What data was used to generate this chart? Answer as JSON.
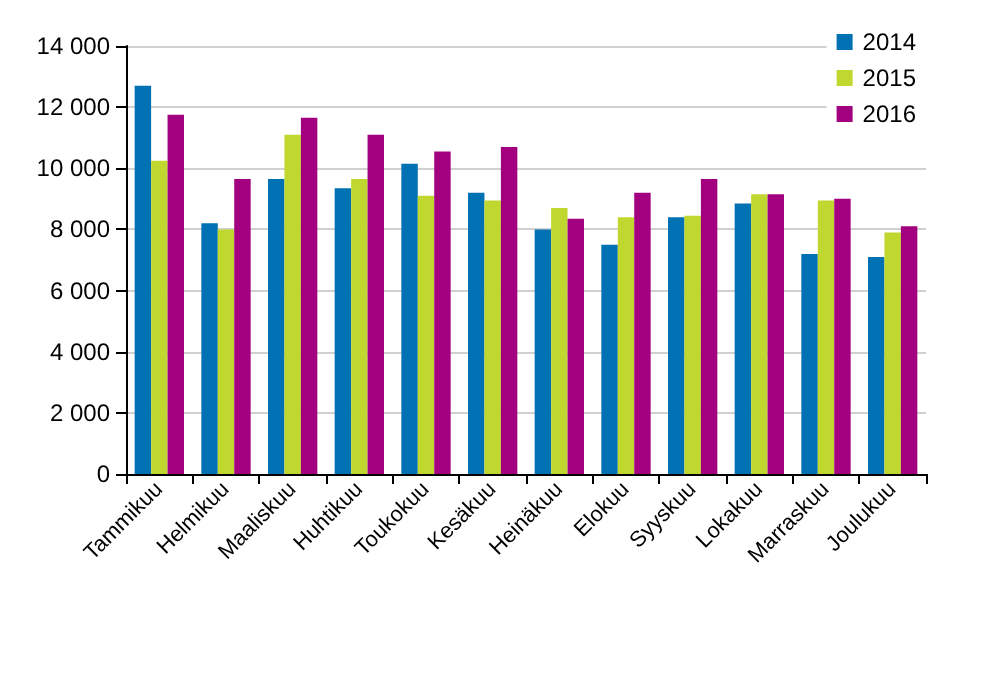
{
  "chart_data": {
    "type": "bar",
    "categories": [
      "Tammikuu",
      "Helmikuu",
      "Maaliskuu",
      "Huhtikuu",
      "Toukokuu",
      "Kesäkuu",
      "Heinäkuu",
      "Elokuu",
      "Syyskuu",
      "Lokakuu",
      "Marraskuu",
      "Joulukuu"
    ],
    "series": [
      {
        "name": "2014",
        "color": "#0071b2",
        "values": [
          12700,
          8200,
          9650,
          9350,
          10150,
          9200,
          8000,
          7500,
          8400,
          8850,
          7200,
          7100
        ]
      },
      {
        "name": "2015",
        "color": "#c0d730",
        "values": [
          10250,
          8000,
          11100,
          9650,
          9100,
          8950,
          8700,
          8400,
          8450,
          9150,
          8950,
          7900
        ]
      },
      {
        "name": "2016",
        "color": "#a3007f",
        "values": [
          11750,
          9650,
          11650,
          11100,
          10550,
          10700,
          8350,
          9200,
          9650,
          9150,
          9000,
          8100
        ]
      }
    ],
    "ylim": [
      0,
      14000
    ],
    "yticks": [
      {
        "value": 0,
        "label": "0"
      },
      {
        "value": 2000,
        "label": "2 000"
      },
      {
        "value": 4000,
        "label": "4 000"
      },
      {
        "value": 6000,
        "label": "6 000"
      },
      {
        "value": 8000,
        "label": "8 000"
      },
      {
        "value": 10000,
        "label": "10 000"
      },
      {
        "value": 12000,
        "label": "12 000"
      },
      {
        "value": 14000,
        "label": "14 000"
      }
    ],
    "grid": "y",
    "legend": "top right"
  }
}
